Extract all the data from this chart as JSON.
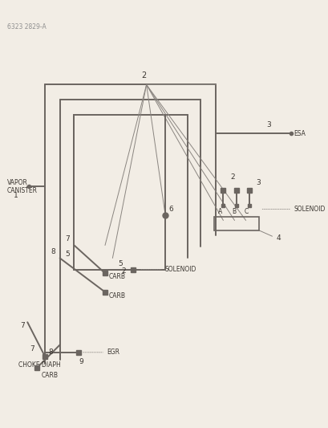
{
  "bg_color": "#f2ede5",
  "line_color": "#6b6560",
  "thin_line_color": "#8a8580",
  "text_color": "#3a3530",
  "title": "6323 2829-A",
  "fig_width": 4.1,
  "fig_height": 5.33,
  "dpi": 100,
  "lw_main": 1.4,
  "lw_thin": 0.7,
  "labels": {
    "vapor_canister": "VAPOR\nCANISTER",
    "esa": "ESA",
    "carb": "CARB",
    "egr": "EGR",
    "choke_diaph": "CHOKE DIAPH",
    "solenoid": "SOLENOID"
  }
}
